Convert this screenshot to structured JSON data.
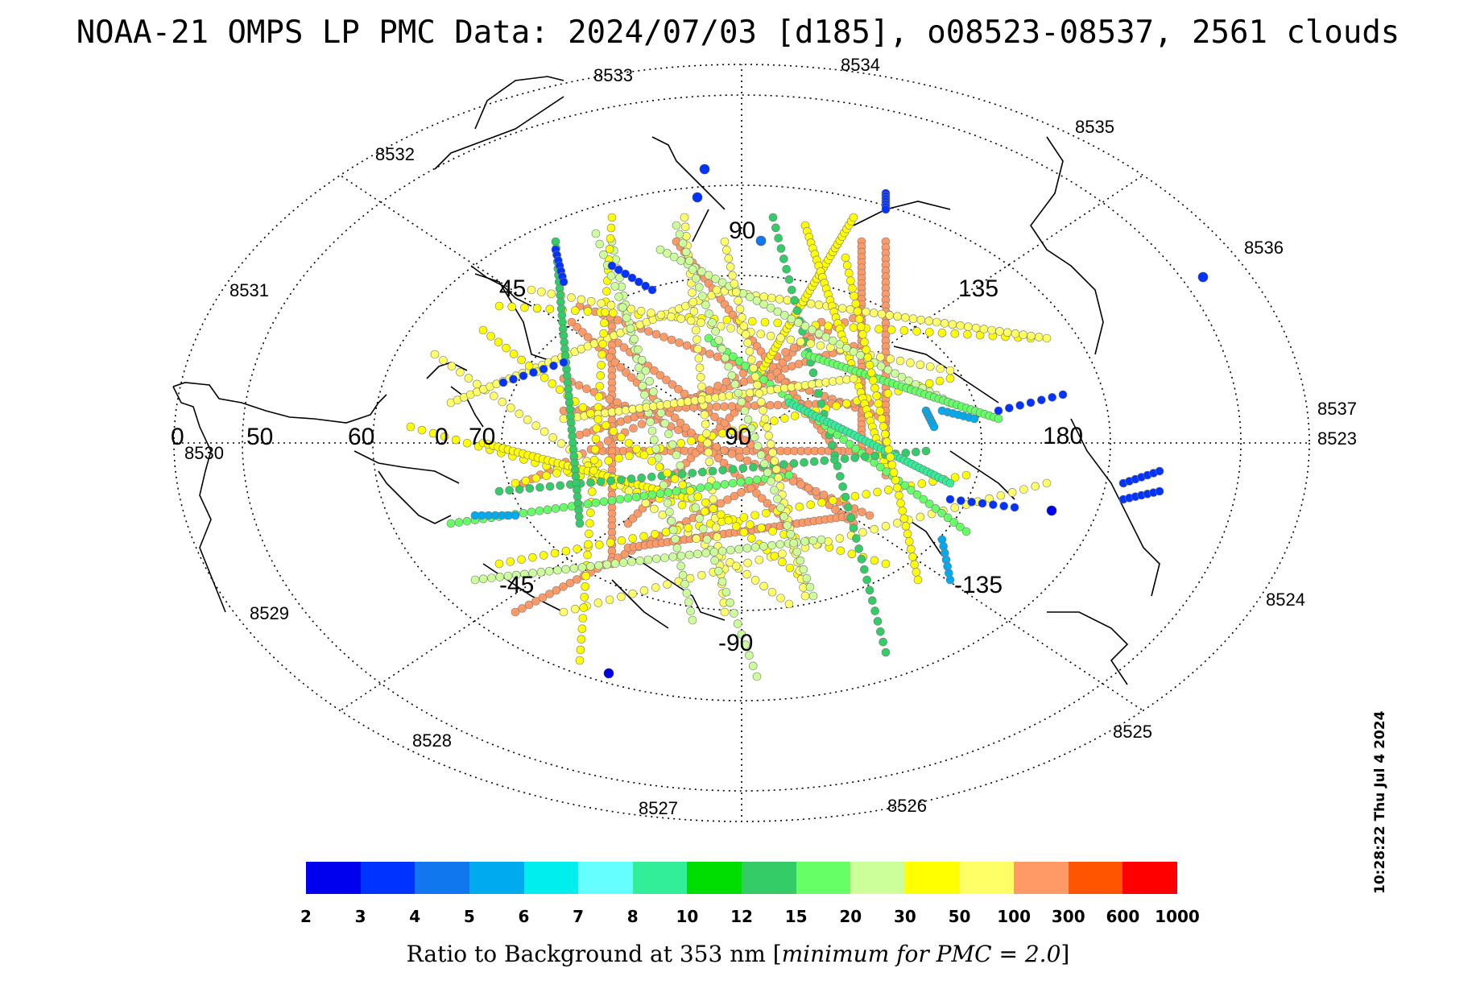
{
  "title": "NOAA-21 OMPS LP PMC Data: 2024/07/03 [d185], o08523-08537, 2561 clouds",
  "map": {
    "lon_labels": [
      "90",
      "135",
      "180",
      "-135",
      "-90",
      "-45",
      "0",
      "45"
    ],
    "lat_labels": [
      "90",
      "70",
      "60",
      "50",
      "0"
    ],
    "orbit_labels": [
      "8523",
      "8524",
      "8525",
      "8526",
      "8527",
      "8528",
      "8529",
      "8530",
      "8531",
      "8532",
      "8533",
      "8534",
      "8535",
      "8536",
      "8537"
    ]
  },
  "colorbar": {
    "colors": [
      "#0000ee",
      "#0033ff",
      "#1177ee",
      "#00aaee",
      "#00eeee",
      "#66ffff",
      "#33ee99",
      "#00dd00",
      "#33cc66",
      "#66ff66",
      "#ccff99",
      "#ffff00",
      "#ffff66",
      "#ff9966",
      "#ff5500",
      "#ff0000"
    ],
    "ticks": [
      "2",
      "3",
      "4",
      "5",
      "6",
      "7",
      "8",
      "10",
      "12",
      "15",
      "20",
      "30",
      "50",
      "100",
      "300",
      "600",
      "1000"
    ],
    "label_prefix": "Ratio to Background at 353 nm [",
    "label_italic": "minimum for PMC = 2.0",
    "label_suffix": "]"
  },
  "timestamp": "10:28:22 Thu Jul  4 2024"
}
